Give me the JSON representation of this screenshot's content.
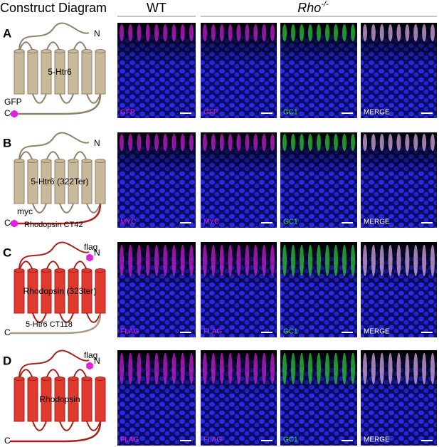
{
  "header": {
    "title": "Construct Diagram",
    "wt": "WT",
    "rho": "Rho",
    "rho_sup": "-/-"
  },
  "rows": [
    {
      "letter": "A",
      "name": "5-Htr6",
      "color": "#c9b99b",
      "n": "N",
      "c": "C",
      "tag": "GFP",
      "panels": [
        "GFP",
        "GFP",
        "GC1",
        "MERGE"
      ]
    },
    {
      "letter": "B",
      "name": "5-Htr6 (322Ter)",
      "color": "#c9b99b",
      "n": "N",
      "c": "C",
      "tag": "myc",
      "tail": "Rhodopsin CT42",
      "panels": [
        "MYC",
        "MYC",
        "GC1",
        "MERGE"
      ]
    },
    {
      "letter": "C",
      "name": "Rhodopsin (323ter)",
      "color": "#e03a2f",
      "n": "N",
      "c": "C",
      "tag": "flag",
      "tail": "5-Htr6 CT118",
      "panels": [
        "FLAG",
        "FLAG",
        "GC1",
        "MERGE"
      ]
    },
    {
      "letter": "D",
      "name": "Rhodopsin",
      "color": "#e03a2f",
      "n": "N",
      "c": "C",
      "tag": "flag",
      "panels": [
        "FLAG",
        "FLAG",
        "GC1",
        "MERGE"
      ]
    }
  ]
}
